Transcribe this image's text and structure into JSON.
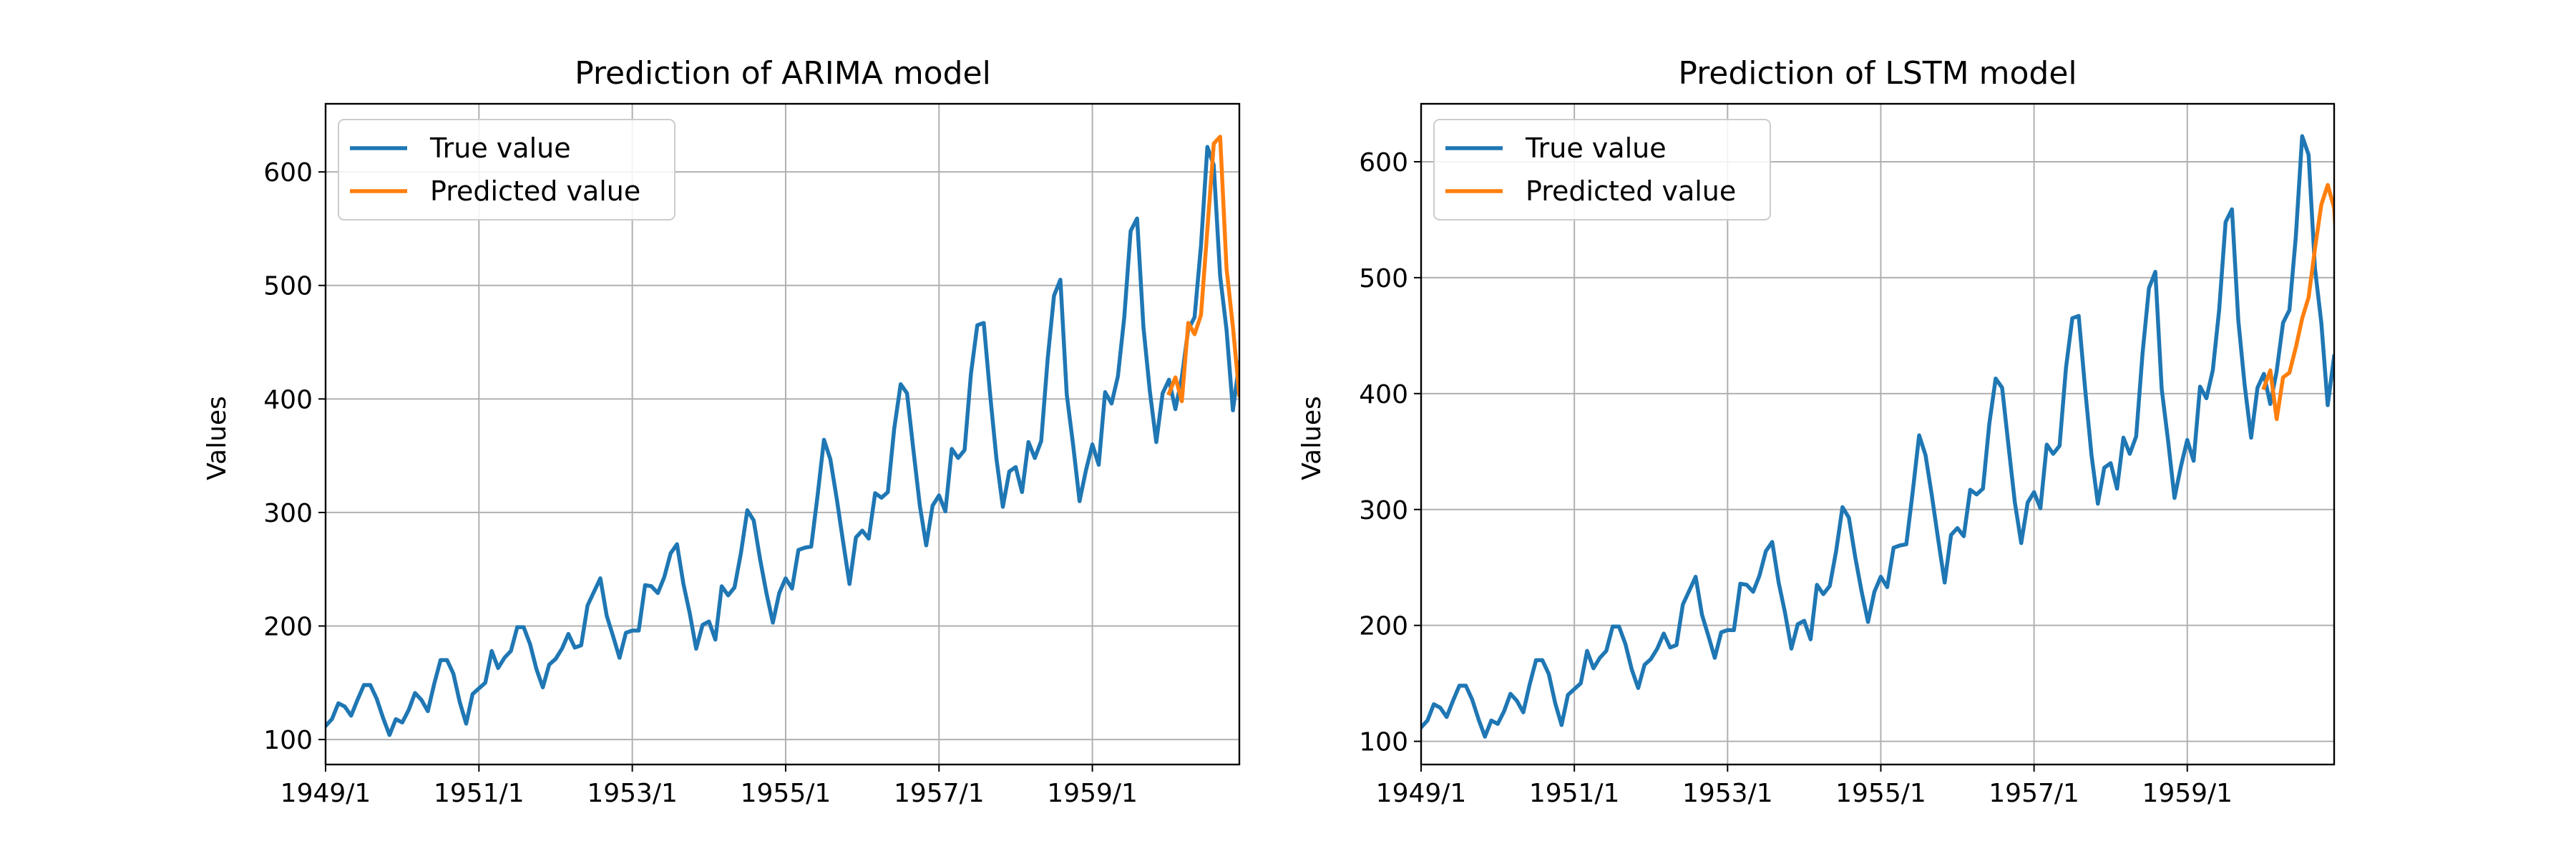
{
  "chart_data": [
    {
      "type": "line",
      "title": "Prediction of ARIMA model",
      "xlabel": "",
      "ylabel": "Values",
      "xlim": [
        1949.0,
        1960.9167
      ],
      "ylim": [
        78,
        660
      ],
      "grid": true,
      "legend_position": "top-left",
      "x_ticks": [
        1949,
        1951,
        1953,
        1955,
        1957,
        1959
      ],
      "x_tick_labels": [
        "1949/1",
        "1951/1",
        "1953/1",
        "1955/1",
        "1957/1",
        "1959/1"
      ],
      "y_ticks": [
        100,
        200,
        300,
        400,
        500,
        600
      ],
      "y_tick_labels": [
        "100",
        "200",
        "300",
        "400",
        "500",
        "600"
      ],
      "series": [
        {
          "name": "True value",
          "color": "#1f77b4",
          "x_start": 1949.0,
          "x_step": 0.08333,
          "values": [
            112,
            118,
            132,
            129,
            121,
            135,
            148,
            148,
            136,
            119,
            104,
            118,
            115,
            126,
            141,
            135,
            125,
            149,
            170,
            170,
            158,
            133,
            114,
            140,
            145,
            150,
            178,
            163,
            172,
            178,
            199,
            199,
            184,
            162,
            146,
            166,
            171,
            180,
            193,
            181,
            183,
            218,
            230,
            242,
            209,
            191,
            172,
            194,
            196,
            196,
            236,
            235,
            229,
            243,
            264,
            272,
            237,
            211,
            180,
            201,
            204,
            188,
            235,
            227,
            234,
            264,
            302,
            293,
            259,
            229,
            203,
            229,
            242,
            233,
            267,
            269,
            270,
            315,
            364,
            347,
            312,
            274,
            237,
            278,
            284,
            277,
            317,
            313,
            318,
            374,
            413,
            405,
            355,
            306,
            271,
            306,
            315,
            301,
            356,
            348,
            355,
            422,
            465,
            467,
            404,
            347,
            305,
            336,
            340,
            318,
            362,
            348,
            363,
            435,
            491,
            505,
            404,
            359,
            310,
            337,
            360,
            342,
            406,
            396,
            420,
            472,
            548,
            559,
            463,
            407,
            362,
            405,
            417,
            391,
            419,
            461,
            472,
            535,
            622,
            606,
            508,
            461,
            390,
            432
          ]
        },
        {
          "name": "Predicted value",
          "color": "#ff7f0e",
          "x_start": 1960.0,
          "x_step": 0.08333,
          "values": [
            405,
            419,
            398,
            467,
            457,
            474,
            549,
            625,
            631,
            515,
            463,
            403,
            449
          ]
        }
      ]
    },
    {
      "type": "line",
      "title": "Prediction of LSTM model",
      "xlabel": "",
      "ylabel": "Values",
      "xlim": [
        1949.0,
        1960.9167
      ],
      "ylim": [
        80,
        650
      ],
      "grid": true,
      "legend_position": "top-left",
      "x_ticks": [
        1949,
        1951,
        1953,
        1955,
        1957,
        1959
      ],
      "x_tick_labels": [
        "1949/1",
        "1951/1",
        "1953/1",
        "1955/1",
        "1957/1",
        "1959/1"
      ],
      "y_ticks": [
        100,
        200,
        300,
        400,
        500,
        600
      ],
      "y_tick_labels": [
        "100",
        "200",
        "300",
        "400",
        "500",
        "600"
      ],
      "series": [
        {
          "name": "True value",
          "color": "#1f77b4",
          "x_start": 1949.0,
          "x_step": 0.08333,
          "values": [
            112,
            118,
            132,
            129,
            121,
            135,
            148,
            148,
            136,
            119,
            104,
            118,
            115,
            126,
            141,
            135,
            125,
            149,
            170,
            170,
            158,
            133,
            114,
            140,
            145,
            150,
            178,
            163,
            172,
            178,
            199,
            199,
            184,
            162,
            146,
            166,
            171,
            180,
            193,
            181,
            183,
            218,
            230,
            242,
            209,
            191,
            172,
            194,
            196,
            196,
            236,
            235,
            229,
            243,
            264,
            272,
            237,
            211,
            180,
            201,
            204,
            188,
            235,
            227,
            234,
            264,
            302,
            293,
            259,
            229,
            203,
            229,
            242,
            233,
            267,
            269,
            270,
            315,
            364,
            347,
            312,
            274,
            237,
            278,
            284,
            277,
            317,
            313,
            318,
            374,
            413,
            405,
            355,
            306,
            271,
            306,
            315,
            301,
            356,
            348,
            355,
            422,
            465,
            467,
            404,
            347,
            305,
            336,
            340,
            318,
            362,
            348,
            363,
            435,
            491,
            505,
            404,
            359,
            310,
            337,
            360,
            342,
            406,
            396,
            420,
            472,
            548,
            559,
            463,
            407,
            362,
            405,
            417,
            391,
            419,
            461,
            472,
            535,
            622,
            606,
            508,
            461,
            390,
            432
          ]
        },
        {
          "name": "Predicted value",
          "color": "#ff7f0e",
          "x_start": 1960.0,
          "x_step": 0.08333,
          "values": [
            405,
            420,
            378,
            414,
            418,
            440,
            465,
            483,
            525,
            563,
            580,
            560,
            470,
            469
          ]
        }
      ]
    }
  ]
}
